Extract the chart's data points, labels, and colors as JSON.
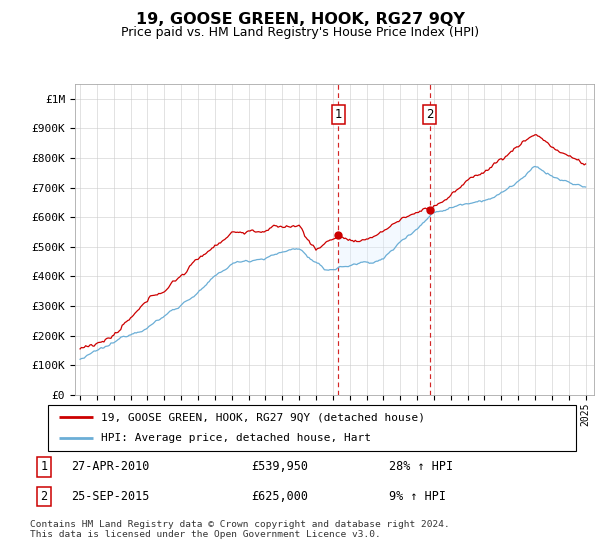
{
  "title": "19, GOOSE GREEN, HOOK, RG27 9QY",
  "subtitle": "Price paid vs. HM Land Registry's House Price Index (HPI)",
  "ylabel_ticks": [
    "£0",
    "£100K",
    "£200K",
    "£300K",
    "£400K",
    "£500K",
    "£600K",
    "£700K",
    "£800K",
    "£900K",
    "£1M"
  ],
  "ytick_vals": [
    0,
    100000,
    200000,
    300000,
    400000,
    500000,
    600000,
    700000,
    800000,
    900000,
    1000000
  ],
  "ylim": [
    0,
    1050000
  ],
  "xlim_start": 1994.7,
  "xlim_end": 2025.5,
  "sale1_year": 2010.32,
  "sale1_price": 539950,
  "sale2_year": 2015.75,
  "sale2_price": 625000,
  "legend1_label": "19, GOOSE GREEN, HOOK, RG27 9QY (detached house)",
  "legend2_label": "HPI: Average price, detached house, Hart",
  "footnote": "Contains HM Land Registry data © Crown copyright and database right 2024.\nThis data is licensed under the Open Government Licence v3.0.",
  "table_row1": [
    "1",
    "27-APR-2010",
    "£539,950",
    "28% ↑ HPI"
  ],
  "table_row2": [
    "2",
    "25-SEP-2015",
    "£625,000",
    "9% ↑ HPI"
  ],
  "hpi_color": "#6baed6",
  "price_color": "#cc0000",
  "grid_color": "#cccccc",
  "shade_color": "#ddeeff",
  "dashed_color": "#cc0000",
  "title_fontsize": 11.5,
  "subtitle_fontsize": 9
}
